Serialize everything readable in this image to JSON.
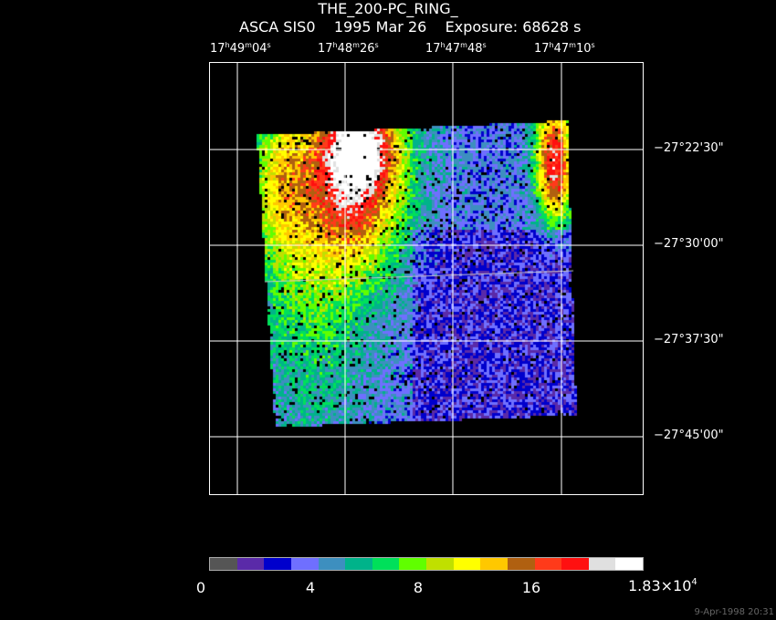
{
  "title": "THE_200-PC_RING_",
  "subtitle": "ASCA SIS0    1995 Mar 26    Exposure: 68628 s",
  "ra_labels": [
    {
      "h": "17",
      "m": "49",
      "s": "04"
    },
    {
      "h": "17",
      "m": "48",
      "s": "26"
    },
    {
      "h": "17",
      "m": "47",
      "s": "48"
    },
    {
      "h": "17",
      "m": "47",
      "s": "10"
    }
  ],
  "dec_labels": [
    {
      "sign": "−27",
      "deg_mark": "°",
      "min": "22",
      "sec": "30"
    },
    {
      "sign": "−27",
      "deg_mark": "°",
      "min": "30",
      "sec": "00"
    },
    {
      "sign": "−27",
      "deg_mark": "°",
      "min": "37",
      "sec": "30"
    },
    {
      "sign": "−27",
      "deg_mark": "°",
      "min": "45",
      "sec": "00"
    }
  ],
  "colorbar": {
    "colors": [
      "#555555",
      "#5a2aa8",
      "#0000cc",
      "#6f6fff",
      "#3d8fbf",
      "#00b38a",
      "#00e05a",
      "#60ff00",
      "#c0e000",
      "#ffff00",
      "#ffc800",
      "#b06010",
      "#ff3a1a",
      "#ff1010",
      "#e0e0e0",
      "#ffffff"
    ],
    "tick_labels": [
      "0",
      "4",
      "8",
      "16"
    ],
    "max_label": "1.83×10",
    "max_exp": "4"
  },
  "timestamp": "9-Apr-1998 20:31"
}
